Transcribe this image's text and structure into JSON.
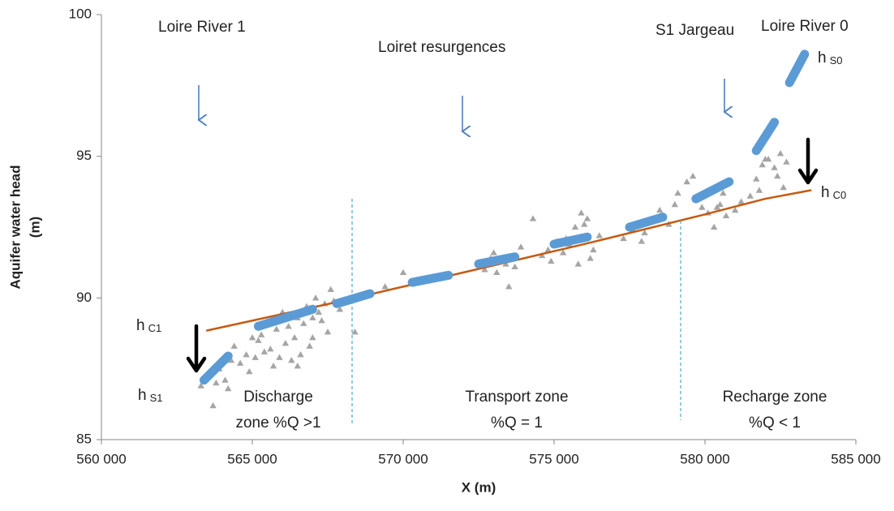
{
  "chart_data": {
    "type": "scatter",
    "x_label": "X (m)",
    "y_label": [
      "Aquifer water head",
      "(m)"
    ],
    "xlim": [
      560000,
      585000
    ],
    "xticks": [
      {
        "value": 560000,
        "label": "560 000"
      },
      {
        "value": 565000,
        "label": "565 000"
      },
      {
        "value": 570000,
        "label": "570 000"
      },
      {
        "value": 575000,
        "label": "575 000"
      },
      {
        "value": 580000,
        "label": "580 000"
      },
      {
        "value": 585000,
        "label": "585 000"
      }
    ],
    "ylim": [
      85,
      100
    ],
    "yticks": [
      85,
      90,
      95,
      100
    ],
    "grid": false,
    "annotations": {
      "loire1": "Loire River 1",
      "loiret": "Loiret resurgences",
      "jargeau": "S1 Jargeau",
      "loire0": "Loire River 0",
      "h_s0": {
        "base": "h",
        "sub": "S0"
      },
      "h_c0": {
        "base": "h",
        "sub": "C0"
      },
      "h_c1": {
        "base": "h",
        "sub": "C1"
      },
      "h_s1": {
        "base": "h",
        "sub": "S1"
      },
      "discharge": [
        "Discharge",
        "zone %Q >1"
      ],
      "transport": [
        "Transport zone",
        "%Q = 1"
      ],
      "recharge": [
        "Recharge zone",
        "%Q < 1"
      ]
    },
    "series": [
      {
        "type": "scatter",
        "color": "#a5a5a5",
        "x": [
          563300,
          563500,
          563700,
          563900,
          564100,
          564300,
          564400,
          564600,
          564800,
          565000,
          565100,
          565300,
          565500,
          565600,
          565800,
          566000,
          566100,
          566300,
          566500,
          566600,
          566800,
          567000,
          567100,
          567300,
          567500,
          567700,
          567900,
          564200,
          564900,
          565400,
          565700,
          566200,
          566400,
          566700,
          566900,
          567200,
          567400,
          567600,
          565200,
          565900,
          566500,
          567000,
          563800,
          568400,
          569400,
          570000,
          570700,
          572700,
          572900,
          573100,
          573300,
          573500,
          573700,
          573900,
          573000,
          573400,
          574300,
          574600,
          574900,
          575100,
          575300,
          575500,
          575700,
          575900,
          576100,
          576300,
          576500,
          575800,
          576000,
          576200,
          574800,
          575400,
          577300,
          577600,
          577900,
          578200,
          578500,
          578800,
          579100,
          579400,
          579000,
          578000,
          579600,
          579900,
          580100,
          580300,
          580500,
          580700,
          581000,
          581200,
          581500,
          581700,
          581900,
          582100,
          582300,
          582500,
          582700,
          580600,
          581800,
          582400,
          582000,
          580400,
          582600
        ],
        "values": [
          86.9,
          87.3,
          86.2,
          87.5,
          87.1,
          87.8,
          88.3,
          87.7,
          88.0,
          88.6,
          87.9,
          88.7,
          89.1,
          88.2,
          88.9,
          89.5,
          88.4,
          87.8,
          89.3,
          88.0,
          89.7,
          88.6,
          90.0,
          89.2,
          88.8,
          89.9,
          89.6,
          86.8,
          87.4,
          88.1,
          87.6,
          89.0,
          88.6,
          89.1,
          88.3,
          89.5,
          89.8,
          90.3,
          88.5,
          87.9,
          87.6,
          89.3,
          87.0,
          88.8,
          90.4,
          90.9,
          90.6,
          91.0,
          91.4,
          90.9,
          91.3,
          90.4,
          91.1,
          91.8,
          91.6,
          91.2,
          92.8,
          91.5,
          91.3,
          92.0,
          91.6,
          91.9,
          92.5,
          93.0,
          92.8,
          91.7,
          92.2,
          91.2,
          92.6,
          91.4,
          91.7,
          92.1,
          92.1,
          92.4,
          92.0,
          92.7,
          93.1,
          92.6,
          93.7,
          94.1,
          93.3,
          92.3,
          94.3,
          93.2,
          93.0,
          92.5,
          93.3,
          92.9,
          93.1,
          93.4,
          93.6,
          94.2,
          94.7,
          94.9,
          94.6,
          95.1,
          94.8,
          93.7,
          93.8,
          94.3,
          94.9,
          93.2,
          93.9
        ]
      },
      {
        "type": "line",
        "color": "#c55a11",
        "width": 2.5,
        "x": [
          563500,
          568000,
          572000,
          576000,
          580000,
          582000,
          583500
        ],
        "values": [
          88.85,
          89.9,
          90.9,
          91.9,
          92.95,
          93.5,
          93.8
        ]
      },
      {
        "type": "line",
        "color": "#5b9bd5",
        "width": 11,
        "x": [
          563400,
          564200,
          null,
          565200,
          567000,
          null,
          567800,
          568900,
          null,
          570300,
          571500,
          null,
          572500,
          573700,
          null,
          575000,
          576100,
          null,
          577500,
          578600,
          null,
          579700,
          580800,
          null,
          581700,
          582300,
          null,
          582800,
          583300
        ],
        "values": [
          87.1,
          87.95,
          null,
          89.0,
          89.6,
          null,
          89.8,
          90.15,
          null,
          90.55,
          90.8,
          null,
          91.2,
          91.45,
          null,
          91.9,
          92.15,
          null,
          92.5,
          92.85,
          null,
          93.5,
          94.1,
          null,
          95.2,
          96.2,
          null,
          97.6,
          98.6
        ]
      }
    ]
  }
}
